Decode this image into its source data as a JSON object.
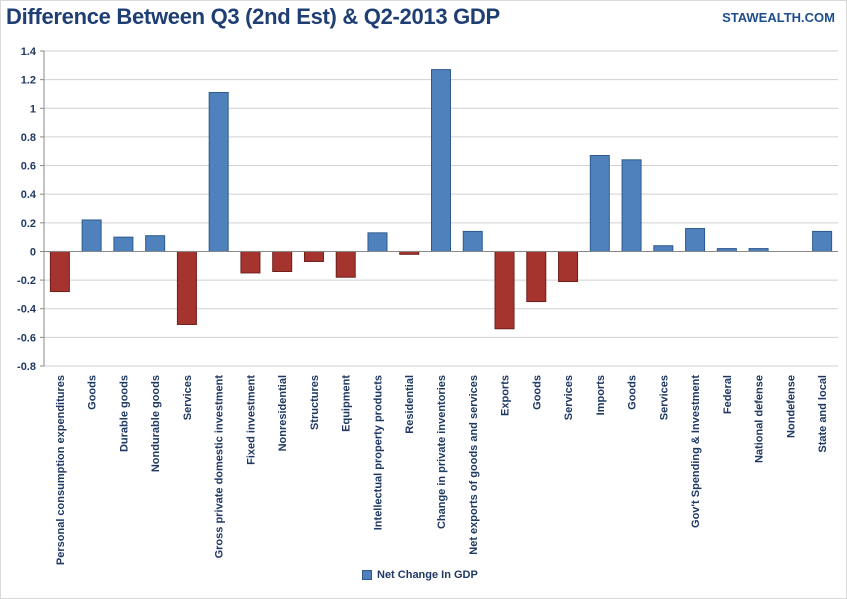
{
  "header": {
    "title": "Difference Between Q3 (2nd Est) & Q2-2013 GDP",
    "brand": "STAWEALTH.COM"
  },
  "colors": {
    "positive": "#4f81bd",
    "negative": "#a5342f",
    "title": "#1f3f74"
  },
  "chart_data": {
    "type": "bar",
    "title": "Difference Between Q3 (2nd Est) & Q2-2013 GDP",
    "xlabel": "",
    "ylabel": "",
    "ylim": [
      -0.8,
      1.4
    ],
    "yticks": [
      "1.4",
      "1.2",
      "1",
      "0.8",
      "0.6",
      "0.4",
      "0.2",
      "0",
      "-0.2",
      "-0.4",
      "-0.6",
      "-0.8"
    ],
    "ytick_values": [
      1.4,
      1.2,
      1.0,
      0.8,
      0.6,
      0.4,
      0.2,
      0,
      -0.2,
      -0.4,
      -0.6,
      -0.8
    ],
    "grid": true,
    "legend": "bottom-center",
    "categories": [
      "Personal consumption expenditures",
      "Goods",
      "Durable goods",
      "Nondurable goods",
      "Services",
      "Gross private domestic investment",
      "Fixed investment",
      "Nonresidential",
      "Structures",
      "Equipment",
      "Intellectual property products",
      "Residential",
      "Change in private inventories",
      "Net exports of goods and services",
      "Exports",
      "Goods",
      "Services",
      "Imports",
      "Goods",
      "Services",
      "Gov't Spending & Investment",
      "Federal",
      "National defense",
      "Nondefense",
      "State and local"
    ],
    "series": [
      {
        "name": "Net Change In GDP",
        "values": [
          -0.28,
          0.22,
          0.1,
          0.11,
          -0.51,
          1.11,
          -0.15,
          -0.14,
          -0.07,
          -0.18,
          0.13,
          -0.02,
          1.27,
          0.14,
          -0.54,
          -0.35,
          -0.21,
          0.67,
          0.64,
          0.04,
          0.16,
          0.02,
          0.02,
          0.0,
          0.14
        ]
      }
    ]
  },
  "legend": {
    "label": "Net Change In GDP"
  }
}
